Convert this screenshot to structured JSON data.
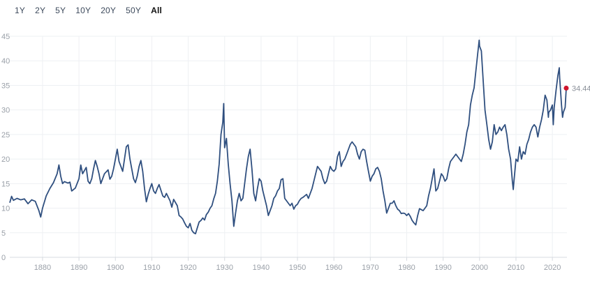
{
  "ranges": [
    {
      "label": "1Y",
      "active": false
    },
    {
      "label": "2Y",
      "active": false
    },
    {
      "label": "5Y",
      "active": false
    },
    {
      "label": "10Y",
      "active": false
    },
    {
      "label": "20Y",
      "active": false
    },
    {
      "label": "50Y",
      "active": false
    },
    {
      "label": "All",
      "active": true
    }
  ],
  "colors": {
    "line": "#2f4f7f",
    "marker": "#d0142c"
  },
  "chart_data": {
    "type": "line",
    "title": "",
    "xlabel": "",
    "ylabel": "",
    "xlim": [
      1871,
      2024
    ],
    "ylim": [
      0,
      45
    ],
    "grid": true,
    "x_ticks": [
      "1880",
      "1890",
      "1900",
      "1910",
      "1920",
      "1930",
      "1940",
      "1950",
      "1960",
      "1970",
      "1980",
      "1990",
      "2000",
      "2010",
      "2020"
    ],
    "y_ticks": [
      "0",
      "5",
      "10",
      "15",
      "20",
      "25",
      "30",
      "35",
      "40",
      "45"
    ],
    "last_value_label": "34.44",
    "series": [
      {
        "values": [
          [
            1871,
            11.1
          ],
          [
            1871.5,
            12.4
          ],
          [
            1872,
            11.6
          ],
          [
            1873,
            12.0
          ],
          [
            1874,
            11.7
          ],
          [
            1875,
            11.9
          ],
          [
            1876,
            10.9
          ],
          [
            1877,
            11.7
          ],
          [
            1878,
            11.4
          ],
          [
            1879,
            9.5
          ],
          [
            1879.5,
            8.2
          ],
          [
            1880,
            10.0
          ],
          [
            1881,
            12.5
          ],
          [
            1882,
            14.0
          ],
          [
            1883,
            15.2
          ],
          [
            1884,
            17.0
          ],
          [
            1884.5,
            18.8
          ],
          [
            1885,
            16.5
          ],
          [
            1885.5,
            15.0
          ],
          [
            1886,
            15.4
          ],
          [
            1887,
            15.1
          ],
          [
            1887.5,
            15.3
          ],
          [
            1888,
            13.5
          ],
          [
            1889,
            14.1
          ],
          [
            1890,
            16.0
          ],
          [
            1890.5,
            18.8
          ],
          [
            1891,
            17.0
          ],
          [
            1892,
            18.3
          ],
          [
            1892.5,
            15.5
          ],
          [
            1893,
            15.0
          ],
          [
            1893.5,
            16.0
          ],
          [
            1894,
            18.0
          ],
          [
            1894.5,
            19.7
          ],
          [
            1895,
            18.5
          ],
          [
            1895.5,
            17.0
          ],
          [
            1896,
            15.0
          ],
          [
            1897,
            17.0
          ],
          [
            1898,
            17.8
          ],
          [
            1898.5,
            15.9
          ],
          [
            1899,
            16.5
          ],
          [
            1899.5,
            18.0
          ],
          [
            1900,
            20.0
          ],
          [
            1900.5,
            22.0
          ],
          [
            1901,
            19.5
          ],
          [
            1902,
            17.5
          ],
          [
            1902.5,
            20.0
          ],
          [
            1903,
            22.5
          ],
          [
            1903.5,
            22.9
          ],
          [
            1904,
            20.0
          ],
          [
            1904.5,
            18.0
          ],
          [
            1905,
            16.0
          ],
          [
            1905.5,
            15.2
          ],
          [
            1906,
            16.5
          ],
          [
            1906.5,
            18.5
          ],
          [
            1907,
            19.7
          ],
          [
            1907.5,
            17.5
          ],
          [
            1908,
            14.0
          ],
          [
            1908.5,
            11.3
          ],
          [
            1909,
            12.8
          ],
          [
            1909.5,
            14.0
          ],
          [
            1910,
            15.0
          ],
          [
            1910.5,
            13.5
          ],
          [
            1911,
            13.0
          ],
          [
            1911.5,
            14.0
          ],
          [
            1912,
            14.8
          ],
          [
            1913,
            12.5
          ],
          [
            1913.5,
            12.2
          ],
          [
            1914,
            13.0
          ],
          [
            1915,
            11.5
          ],
          [
            1915.5,
            10.2
          ],
          [
            1916,
            11.8
          ],
          [
            1917,
            10.5
          ],
          [
            1917.5,
            8.5
          ],
          [
            1918,
            8.2
          ],
          [
            1918.5,
            7.8
          ],
          [
            1919,
            7.0
          ],
          [
            1919.5,
            6.3
          ],
          [
            1920,
            6.0
          ],
          [
            1920.5,
            6.9
          ],
          [
            1921,
            5.5
          ],
          [
            1921.5,
            5.0
          ],
          [
            1922,
            4.8
          ],
          [
            1922.5,
            6.0
          ],
          [
            1923,
            7.2
          ],
          [
            1923.5,
            7.5
          ],
          [
            1924,
            8.0
          ],
          [
            1924.5,
            7.6
          ],
          [
            1925,
            8.7
          ],
          [
            1925.5,
            9.2
          ],
          [
            1926,
            10.0
          ],
          [
            1926.5,
            10.5
          ],
          [
            1927,
            11.9
          ],
          [
            1927.5,
            13.0
          ],
          [
            1928,
            15.5
          ],
          [
            1928.5,
            19.0
          ],
          [
            1929,
            25.0
          ],
          [
            1929.5,
            27.5
          ],
          [
            1929.75,
            31.3
          ],
          [
            1930,
            22.3
          ],
          [
            1930.5,
            24.2
          ],
          [
            1931,
            19.0
          ],
          [
            1931.5,
            15.0
          ],
          [
            1932,
            11.5
          ],
          [
            1932.5,
            6.3
          ],
          [
            1933,
            9.0
          ],
          [
            1933.5,
            11.5
          ],
          [
            1934,
            13.0
          ],
          [
            1934.5,
            11.5
          ],
          [
            1935,
            12.0
          ],
          [
            1935.5,
            15.0
          ],
          [
            1936,
            18.0
          ],
          [
            1936.5,
            20.5
          ],
          [
            1937,
            22.0
          ],
          [
            1937.5,
            18.0
          ],
          [
            1938,
            13.0
          ],
          [
            1938.5,
            11.5
          ],
          [
            1939,
            14.0
          ],
          [
            1939.5,
            16.0
          ],
          [
            1940,
            15.5
          ],
          [
            1940.5,
            13.5
          ],
          [
            1941,
            12.0
          ],
          [
            1941.5,
            10.5
          ],
          [
            1942,
            8.5
          ],
          [
            1942.5,
            9.5
          ],
          [
            1943,
            10.5
          ],
          [
            1943.5,
            12.0
          ],
          [
            1944,
            12.5
          ],
          [
            1944.5,
            13.5
          ],
          [
            1945,
            14.0
          ],
          [
            1945.5,
            15.8
          ],
          [
            1946,
            16.0
          ],
          [
            1946.5,
            12.0
          ],
          [
            1947,
            11.5
          ],
          [
            1947.5,
            11.0
          ],
          [
            1948,
            10.5
          ],
          [
            1948.5,
            11.0
          ],
          [
            1949,
            9.8
          ],
          [
            1949.5,
            10.5
          ],
          [
            1950,
            10.8
          ],
          [
            1950.5,
            11.5
          ],
          [
            1951,
            12.0
          ],
          [
            1951.5,
            12.2
          ],
          [
            1952,
            12.5
          ],
          [
            1952.5,
            12.8
          ],
          [
            1953,
            12.0
          ],
          [
            1953.5,
            13.0
          ],
          [
            1954,
            14.0
          ],
          [
            1954.5,
            15.5
          ],
          [
            1955,
            17.0
          ],
          [
            1955.5,
            18.5
          ],
          [
            1956,
            18.0
          ],
          [
            1956.5,
            17.5
          ],
          [
            1957,
            16.0
          ],
          [
            1957.5,
            15.0
          ],
          [
            1958,
            15.5
          ],
          [
            1958.5,
            17.0
          ],
          [
            1959,
            18.5
          ],
          [
            1959.5,
            17.8
          ],
          [
            1960,
            17.5
          ],
          [
            1960.5,
            18.0
          ],
          [
            1961,
            20.5
          ],
          [
            1961.5,
            21.5
          ],
          [
            1962,
            18.5
          ],
          [
            1962.5,
            19.5
          ],
          [
            1963,
            20.0
          ],
          [
            1963.5,
            21.0
          ],
          [
            1964,
            22.0
          ],
          [
            1964.5,
            23.0
          ],
          [
            1965,
            23.5
          ],
          [
            1965.5,
            23.0
          ],
          [
            1966,
            22.5
          ],
          [
            1966.5,
            21.0
          ],
          [
            1967,
            20.0
          ],
          [
            1967.5,
            21.5
          ],
          [
            1968,
            22.0
          ],
          [
            1968.5,
            21.8
          ],
          [
            1969,
            19.5
          ],
          [
            1969.5,
            17.5
          ],
          [
            1970,
            15.5
          ],
          [
            1970.5,
            16.5
          ],
          [
            1971,
            17.0
          ],
          [
            1971.5,
            18.0
          ],
          [
            1972,
            18.3
          ],
          [
            1972.5,
            17.5
          ],
          [
            1973,
            16.0
          ],
          [
            1973.5,
            13.5
          ],
          [
            1974,
            11.5
          ],
          [
            1974.5,
            9.0
          ],
          [
            1975,
            10.0
          ],
          [
            1975.5,
            11.0
          ],
          [
            1976,
            11.0
          ],
          [
            1976.5,
            11.5
          ],
          [
            1977,
            10.5
          ],
          [
            1977.5,
            9.8
          ],
          [
            1978,
            9.5
          ],
          [
            1978.5,
            8.9
          ],
          [
            1979,
            9.0
          ],
          [
            1979.5,
            8.9
          ],
          [
            1980,
            8.5
          ],
          [
            1980.5,
            8.9
          ],
          [
            1981,
            8.3
          ],
          [
            1981.5,
            7.5
          ],
          [
            1982,
            7.0
          ],
          [
            1982.5,
            6.6
          ],
          [
            1983,
            8.5
          ],
          [
            1983.5,
            9.9
          ],
          [
            1984,
            9.7
          ],
          [
            1984.5,
            9.5
          ],
          [
            1985,
            10.0
          ],
          [
            1985.5,
            10.5
          ],
          [
            1986,
            12.5
          ],
          [
            1986.5,
            14.0
          ],
          [
            1987,
            16.0
          ],
          [
            1987.5,
            18.0
          ],
          [
            1988,
            13.5
          ],
          [
            1988.5,
            14.0
          ],
          [
            1989,
            15.5
          ],
          [
            1989.5,
            17.0
          ],
          [
            1990,
            16.5
          ],
          [
            1990.5,
            15.5
          ],
          [
            1991,
            16.0
          ],
          [
            1991.5,
            18.0
          ],
          [
            1992,
            19.5
          ],
          [
            1992.5,
            20.0
          ],
          [
            1993,
            20.5
          ],
          [
            1993.5,
            21.0
          ],
          [
            1994,
            20.5
          ],
          [
            1994.5,
            20.0
          ],
          [
            1995,
            19.5
          ],
          [
            1995.5,
            21.0
          ],
          [
            1996,
            23.0
          ],
          [
            1996.5,
            25.5
          ],
          [
            1997,
            27.0
          ],
          [
            1997.5,
            31.0
          ],
          [
            1998,
            33.0
          ],
          [
            1998.5,
            34.5
          ],
          [
            1999,
            38.0
          ],
          [
            1999.5,
            41.5
          ],
          [
            1999.9,
            44.2
          ],
          [
            2000,
            43.0
          ],
          [
            2000.5,
            42.0
          ],
          [
            2001,
            36.0
          ],
          [
            2001.5,
            30.0
          ],
          [
            2002,
            27.0
          ],
          [
            2002.5,
            24.0
          ],
          [
            2003,
            22.0
          ],
          [
            2003.5,
            23.5
          ],
          [
            2004,
            27.0
          ],
          [
            2004.5,
            25.0
          ],
          [
            2005,
            25.5
          ],
          [
            2005.5,
            26.5
          ],
          [
            2006,
            25.8
          ],
          [
            2006.5,
            26.5
          ],
          [
            2007,
            27.0
          ],
          [
            2007.5,
            25.0
          ],
          [
            2008,
            22.0
          ],
          [
            2008.5,
            20.0
          ],
          [
            2009,
            15.5
          ],
          [
            2009.25,
            13.8
          ],
          [
            2009.5,
            16.0
          ],
          [
            2010,
            20.0
          ],
          [
            2010.5,
            19.5
          ],
          [
            2011,
            22.5
          ],
          [
            2011.5,
            20.0
          ],
          [
            2012,
            21.5
          ],
          [
            2012.5,
            21.0
          ],
          [
            2013,
            23.0
          ],
          [
            2013.5,
            24.0
          ],
          [
            2014,
            25.5
          ],
          [
            2014.5,
            26.5
          ],
          [
            2015,
            27.0
          ],
          [
            2015.5,
            26.5
          ],
          [
            2016,
            24.5
          ],
          [
            2016.5,
            26.5
          ],
          [
            2017,
            28.0
          ],
          [
            2017.5,
            30.0
          ],
          [
            2018,
            33.0
          ],
          [
            2018.5,
            32.0
          ],
          [
            2018.9,
            28.5
          ],
          [
            2019,
            29.5
          ],
          [
            2019.5,
            30.0
          ],
          [
            2020,
            31.0
          ],
          [
            2020.25,
            27.0
          ],
          [
            2020.5,
            30.5
          ],
          [
            2021,
            34.0
          ],
          [
            2021.5,
            37.0
          ],
          [
            2021.9,
            38.6
          ],
          [
            2022,
            36.5
          ],
          [
            2022.5,
            31.0
          ],
          [
            2022.8,
            28.5
          ],
          [
            2023,
            29.5
          ],
          [
            2023.5,
            30.5
          ],
          [
            2023.8,
            34.44
          ]
        ]
      }
    ]
  }
}
